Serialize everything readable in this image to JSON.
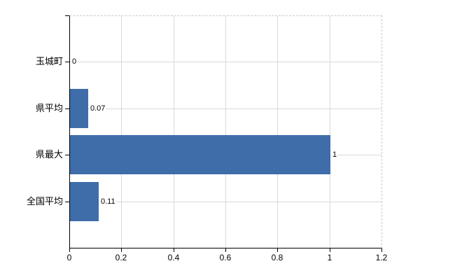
{
  "chart_data": {
    "type": "bar",
    "orientation": "horizontal",
    "title": "",
    "xlabel": "",
    "ylabel": "",
    "categories": [
      "玉城町",
      "県平均",
      "県最大",
      "全国平均"
    ],
    "values": [
      0,
      0.07,
      1,
      0.11
    ],
    "value_labels": [
      "0",
      "0.07",
      "1",
      "0.11"
    ],
    "xlim": [
      0,
      1.2
    ],
    "x_tick_values": [
      0,
      0.2,
      0.4,
      0.6,
      0.8,
      1,
      1.2
    ],
    "x_tick_labels": [
      "0",
      "0.2",
      "0.4",
      "0.6",
      "0.8",
      "1",
      "1.2"
    ],
    "grid": "on",
    "legend": "none",
    "colors": {
      "bar": "#3e6da9",
      "gridline": "#d9d9d9",
      "plot_border_dashed": "#c9c9c9",
      "axis": "#000000",
      "text": "#000000",
      "background": "#ffffff"
    }
  }
}
